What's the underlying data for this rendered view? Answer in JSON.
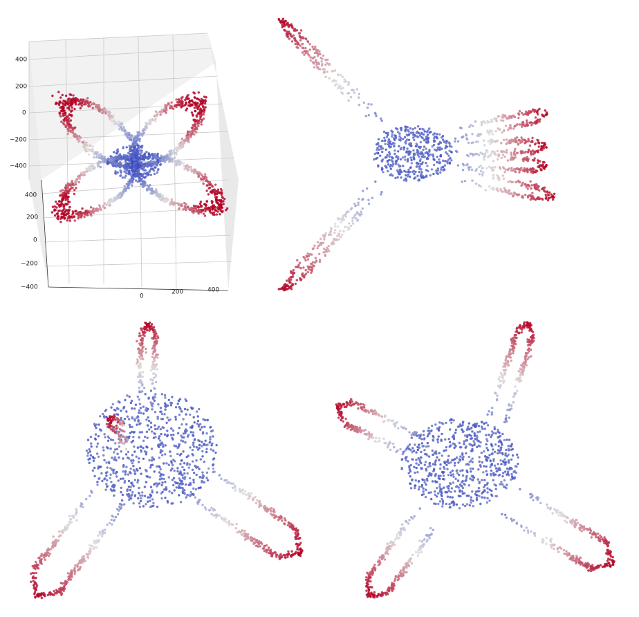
{
  "panels": [
    {
      "z_ticks": [
        "400",
        "200",
        "0",
        "−200",
        "−400"
      ],
      "y_ticks": [
        "400",
        "200",
        "0",
        "−200",
        "−400"
      ],
      "x_ticks": [
        "0",
        "200",
        "400"
      ]
    }
  ]
}
